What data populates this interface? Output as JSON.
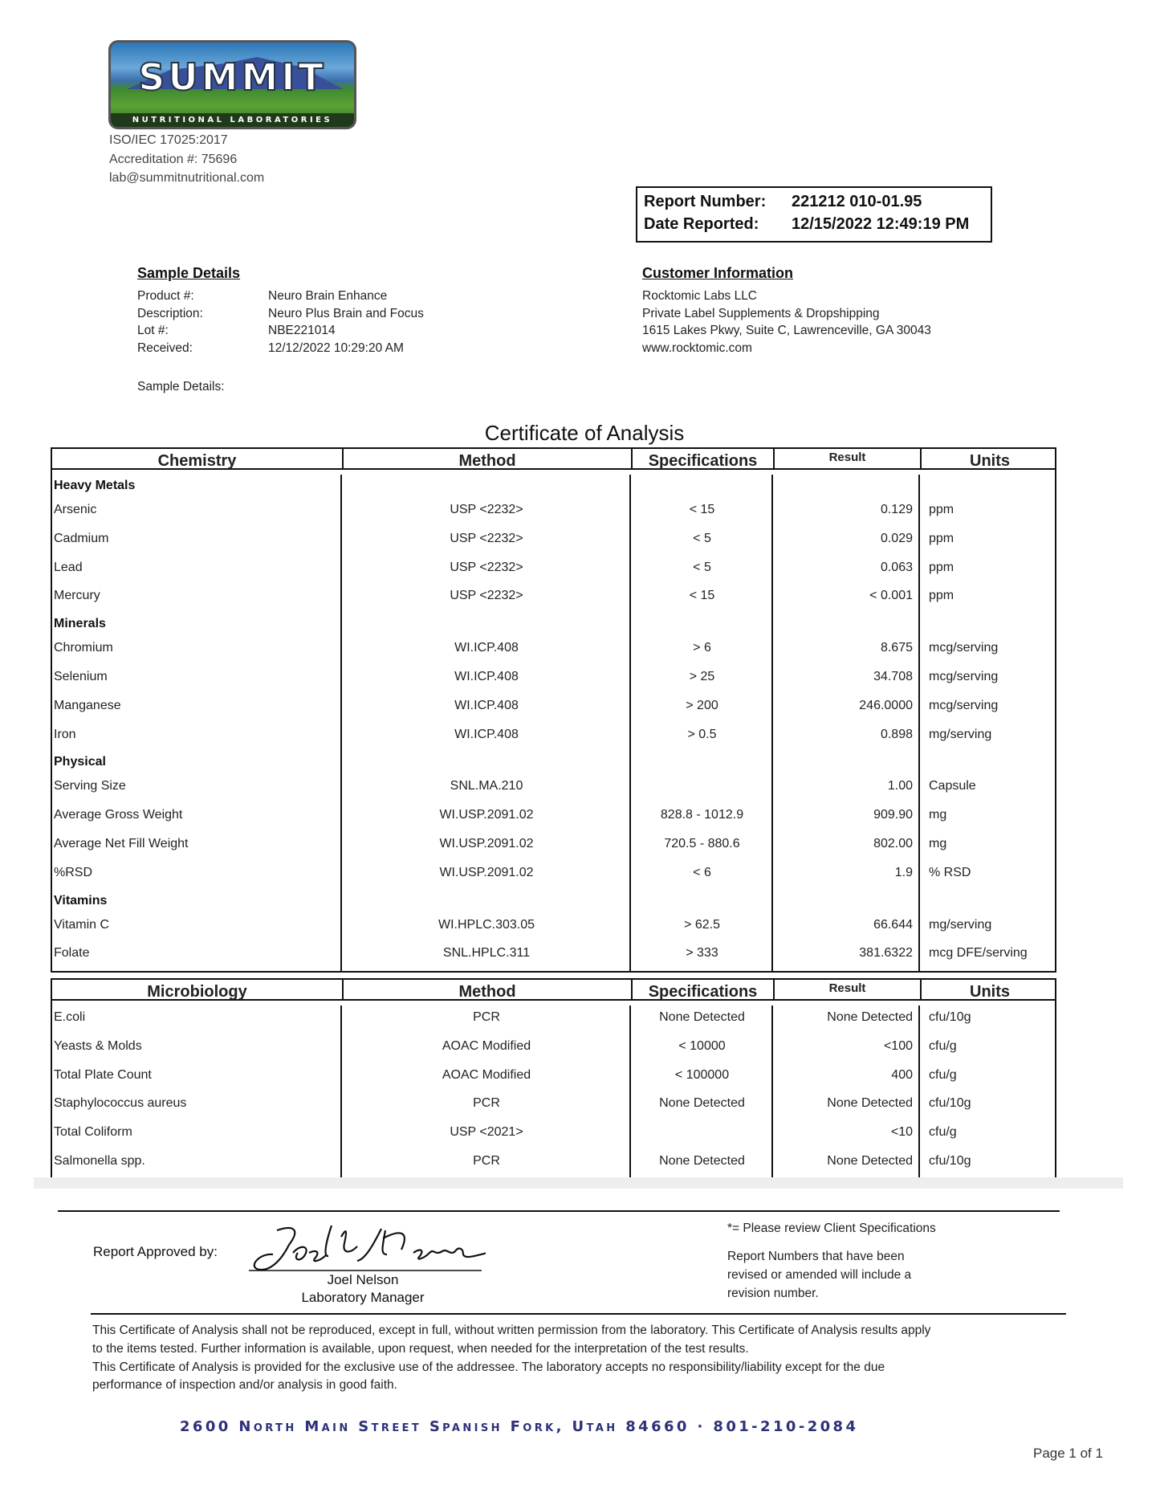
{
  "lab": {
    "logo_text": "SUMMIT",
    "logo_subtext": "NUTRITIONAL LABORATORIES",
    "iso": "ISO/IEC 17025:2017",
    "accreditation": "Accreditation #: 75696",
    "email": "lab@summitnutritional.com"
  },
  "report": {
    "number_label": "Report Number:",
    "number": "221212 010-01.95",
    "date_label": "Date Reported:",
    "date": "12/15/2022 12:49:19 PM"
  },
  "sample": {
    "heading": "Sample Details",
    "fields": [
      {
        "label": "Product #:",
        "value": "Neuro Brain Enhance"
      },
      {
        "label": "Description:",
        "value": "Neuro Plus Brain and Focus"
      },
      {
        "label": "Lot #:",
        "value": "NBE221014"
      },
      {
        "label": "Received:",
        "value": "12/12/2022 10:29:20 AM"
      }
    ],
    "details_label": "Sample Details:"
  },
  "customer": {
    "heading": "Customer Information",
    "lines": [
      "Rocktomic Labs LLC",
      "Private Label Supplements & Dropshipping",
      "1615 Lakes Pkwy, Suite C, Lawrenceville, GA 30043",
      "www.rocktomic.com"
    ]
  },
  "title": "Certificate of Analysis",
  "chemistry": {
    "headers": [
      "Chemistry",
      "Method",
      "Specifications",
      "Result",
      "Units"
    ],
    "groups": [
      {
        "name": "Heavy Metals",
        "rows": [
          [
            "Arsenic",
            "USP <2232>",
            "< 15",
            "0.129",
            "ppm"
          ],
          [
            "Cadmium",
            "USP <2232>",
            "< 5",
            "0.029",
            "ppm"
          ],
          [
            "Lead",
            "USP <2232>",
            "< 5",
            "0.063",
            "ppm"
          ],
          [
            "Mercury",
            "USP <2232>",
            "< 15",
            "< 0.001",
            "ppm"
          ]
        ]
      },
      {
        "name": "Minerals",
        "rows": [
          [
            "Chromium",
            "WI.ICP.408",
            "> 6",
            "8.675",
            "mcg/serving"
          ],
          [
            "Selenium",
            "WI.ICP.408",
            "> 25",
            "34.708",
            "mcg/serving"
          ],
          [
            "Manganese",
            "WI.ICP.408",
            "> 200",
            "246.0000",
            "mcg/serving"
          ],
          [
            "Iron",
            "WI.ICP.408",
            "> 0.5",
            "0.898",
            "mg/serving"
          ]
        ]
      },
      {
        "name": "Physical",
        "rows": [
          [
            "Serving Size",
            "SNL.MA.210",
            "",
            "1.00",
            "Capsule"
          ],
          [
            "Average Gross Weight",
            "WI.USP.2091.02",
            "828.8 - 1012.9",
            "909.90",
            "mg"
          ],
          [
            "Average Net Fill Weight",
            "WI.USP.2091.02",
            "720.5 - 880.6",
            "802.00",
            "mg"
          ],
          [
            "%RSD",
            "WI.USP.2091.02",
            "< 6",
            "1.9",
            "% RSD"
          ]
        ]
      },
      {
        "name": "Vitamins",
        "rows": [
          [
            "Vitamin C",
            "WI.HPLC.303.05",
            "> 62.5",
            "66.644",
            "mg/serving"
          ],
          [
            "Folate",
            "SNL.HPLC.311",
            "> 333",
            "381.6322",
            "mcg DFE/serving"
          ]
        ]
      }
    ]
  },
  "microbiology": {
    "headers": [
      "Microbiology",
      "Method",
      "Specifications",
      "Result",
      "Units"
    ],
    "groups": [
      {
        "name": "",
        "rows": [
          [
            "E.coli",
            "PCR",
            "None Detected",
            "None Detected",
            "cfu/10g"
          ],
          [
            "Yeasts & Molds",
            "AOAC Modified",
            "< 10000",
            "<100",
            "cfu/g"
          ],
          [
            "Total Plate Count",
            "AOAC Modified",
            "< 100000",
            "400",
            "cfu/g"
          ],
          [
            "Staphylococcus aureus",
            "PCR",
            "None Detected",
            "None Detected",
            "cfu/10g"
          ],
          [
            "Total Coliform",
            "USP <2021>",
            "",
            "<10",
            "cfu/g"
          ],
          [
            "Salmonella spp.",
            "PCR",
            "None Detected",
            "None Detected",
            "cfu/10g"
          ]
        ]
      }
    ]
  },
  "approval": {
    "label": "Report Approved by:",
    "signature_text": "Joel L Nelson",
    "name": "Joel Nelson",
    "title": "Laboratory Manager"
  },
  "notes": {
    "client_spec": "*= Please review Client Specifications",
    "revision": [
      "Report Numbers that have been",
      "revised or amended will include a",
      "revision number."
    ]
  },
  "disclaimer": [
    "This Certificate of Analysis shall not be reproduced, except in full, without written permission from the laboratory. This Certificate of Analysis results apply",
    "to the items tested. Further information is available, upon request, when needed for the interpretation of the test results.",
    "This Certificate of Analysis is provided for the exclusive use of the addressee. The laboratory accepts no responsibility/liability except for the due",
    "performance of inspection and/or analysis in good faith."
  ],
  "address": "2600 North Main Street  Spanish Fork, Utah  84660 · 801-210-2084",
  "page": "Page 1 of 1"
}
